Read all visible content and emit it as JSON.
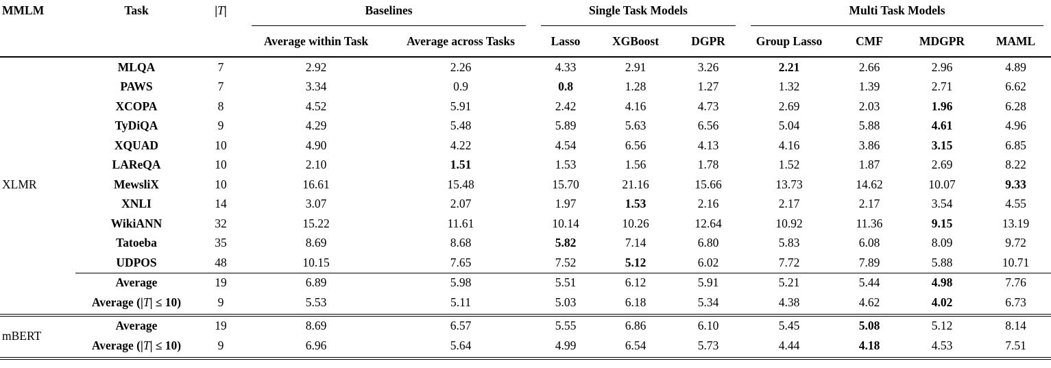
{
  "header": {
    "mmlm": "MMLM",
    "task": "Task",
    "t_open": "|",
    "t_sym": "T",
    "t_close": "|",
    "groups": [
      {
        "label": "Baselines",
        "cols": [
          "Average within Task",
          "Average across Tasks"
        ]
      },
      {
        "label": "Single Task Models",
        "cols": [
          "Lasso",
          "XGBoost",
          "DGPR"
        ]
      },
      {
        "label": "Multi Task Models",
        "cols": [
          "Group Lasso",
          "CMF",
          "MDGPR",
          "MAML"
        ]
      }
    ]
  },
  "chart_data": {
    "type": "table",
    "title": "",
    "columns": [
      "MMLM",
      "Task",
      "|T|",
      "Average within Task",
      "Average across Tasks",
      "Lasso",
      "XGBoost",
      "DGPR",
      "Group Lasso",
      "CMF",
      "MDGPR",
      "MAML"
    ]
  },
  "sections": [
    {
      "mmlm": "XLMR",
      "task_rows": [
        {
          "task": "MLQA",
          "t": "7",
          "values": [
            "2.92",
            "2.26",
            "4.33",
            "2.91",
            "3.26",
            "2.21",
            "2.66",
            "2.96",
            "4.89"
          ],
          "bold": [
            5
          ]
        },
        {
          "task": "PAWS",
          "t": "7",
          "values": [
            "3.34",
            "0.9",
            "0.8",
            "1.28",
            "1.27",
            "1.32",
            "1.39",
            "2.71",
            "6.62"
          ],
          "bold": [
            2
          ]
        },
        {
          "task": "XCOPA",
          "t": "8",
          "values": [
            "4.52",
            "5.91",
            "2.42",
            "4.16",
            "4.73",
            "2.69",
            "2.03",
            "1.96",
            "6.28"
          ],
          "bold": [
            7
          ]
        },
        {
          "task": "TyDiQA",
          "t": "9",
          "values": [
            "4.29",
            "5.48",
            "5.89",
            "5.63",
            "6.56",
            "5.04",
            "5.88",
            "4.61",
            "4.96"
          ],
          "bold": [
            7
          ]
        },
        {
          "task": "XQUAD",
          "t": "10",
          "values": [
            "4.90",
            "4.22",
            "4.54",
            "6.56",
            "4.13",
            "4.16",
            "3.86",
            "3.15",
            "6.85"
          ],
          "bold": [
            7
          ]
        },
        {
          "task": "LAReQA",
          "t": "10",
          "values": [
            "2.10",
            "1.51",
            "1.53",
            "1.56",
            "1.78",
            "1.52",
            "1.87",
            "2.69",
            "8.22"
          ],
          "bold": [
            1
          ]
        },
        {
          "task": "MewsliX",
          "t": "10",
          "values": [
            "16.61",
            "15.48",
            "15.70",
            "21.16",
            "15.66",
            "13.73",
            "14.62",
            "10.07",
            "9.33"
          ],
          "bold": [
            8
          ]
        },
        {
          "task": "XNLI",
          "t": "14",
          "values": [
            "3.07",
            "2.07",
            "1.97",
            "1.53",
            "2.16",
            "2.17",
            "2.17",
            "3.54",
            "4.55"
          ],
          "bold": [
            3
          ]
        },
        {
          "task": "WikiANN",
          "t": "32",
          "values": [
            "15.22",
            "11.61",
            "10.14",
            "10.26",
            "12.64",
            "10.92",
            "11.36",
            "9.15",
            "13.19"
          ],
          "bold": [
            7
          ]
        },
        {
          "task": "Tatoeba",
          "t": "35",
          "values": [
            "8.69",
            "8.68",
            "5.82",
            "7.14",
            "6.80",
            "5.83",
            "6.08",
            "8.09",
            "9.72"
          ],
          "bold": [
            2
          ]
        },
        {
          "task": "UDPOS",
          "t": "48",
          "values": [
            "10.15",
            "7.65",
            "7.52",
            "5.12",
            "6.02",
            "7.72",
            "7.89",
            "5.88",
            "10.71"
          ],
          "bold": [
            3
          ]
        }
      ],
      "avg_rows": [
        {
          "label": {
            "pre": "Average",
            "t": "",
            "post": ""
          },
          "t": "19",
          "values": [
            "6.89",
            "5.98",
            "5.51",
            "6.12",
            "5.91",
            "5.21",
            "5.44",
            "4.98",
            "7.76"
          ],
          "bold": [
            7
          ]
        },
        {
          "label": {
            "pre": "Average (|",
            "t": "T",
            "post": "| ≤ 10)"
          },
          "t": "9",
          "values": [
            "5.53",
            "5.11",
            "5.03",
            "6.18",
            "5.34",
            "4.38",
            "4.62",
            "4.02",
            "6.73"
          ],
          "bold": [
            7
          ]
        }
      ]
    },
    {
      "mmlm": "mBERT",
      "task_rows": [],
      "avg_rows": [
        {
          "label": {
            "pre": "Average",
            "t": "",
            "post": ""
          },
          "t": "19",
          "values": [
            "8.69",
            "6.57",
            "5.55",
            "6.86",
            "6.10",
            "5.45",
            "5.08",
            "5.12",
            "8.14"
          ],
          "bold": [
            6
          ]
        },
        {
          "label": {
            "pre": "Average (|",
            "t": "T",
            "post": "| ≤ 10)"
          },
          "t": "9",
          "values": [
            "6.96",
            "5.64",
            "4.99",
            "6.54",
            "5.73",
            "4.44",
            "4.18",
            "4.53",
            "7.51"
          ],
          "bold": [
            6
          ]
        }
      ]
    }
  ]
}
